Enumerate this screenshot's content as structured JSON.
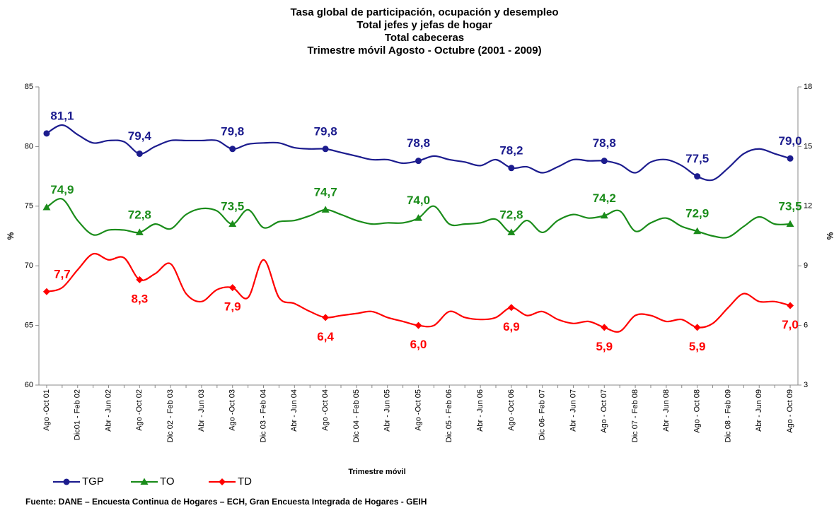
{
  "chart_data": {
    "type": "line",
    "title": [
      "Tasa global de participación, ocupación y desempleo",
      "Total jefes y jefas de hogar",
      "Total cabeceras",
      "Trimestre móvil Agosto - Octubre (2001 - 2009)"
    ],
    "xlabel": "Trimestre móvil",
    "ylabel": "%",
    "y2label": "%",
    "source": "Fuente: DANE – Encuesta Continua de Hogares – ECH, Gran Encuesta Integrada de Hogares - GEIH",
    "categories": [
      "Ago -Oct 01",
      null,
      "Dic01 - Feb 02",
      null,
      "Abr - Jun 02",
      null,
      "Ago -Oct 02",
      null,
      "Dic 02 - Feb 03",
      null,
      "Abr - Jun 03",
      null,
      "Ago -Oct 03",
      null,
      "Dic 03 - Feb 04",
      null,
      "Abr - Jun 04",
      null,
      "Ago -Oct 04",
      null,
      "Dic 04 - Feb 05",
      null,
      "Abr - Jun 05",
      null,
      "Ago -Oct 05",
      null,
      "Dic 05 - Feb 06",
      null,
      "Abr - Jun 06",
      null,
      "Ago -Oct 06",
      null,
      "Dic  06- Feb 07",
      null,
      "Abr - Jun 07",
      null,
      "Ago - Oct 07",
      null,
      "Dic 07 - Feb 08",
      null,
      "Abr - Jun 08",
      null,
      "Ago - Oct 08",
      null,
      "Dic 08 - Feb 09",
      null,
      "Abr - Jun 09",
      null,
      "Ago - Oct 09"
    ],
    "ylim": [
      60,
      85
    ],
    "yticks": [
      60,
      65,
      70,
      75,
      80,
      85
    ],
    "y2lim": [
      3,
      18
    ],
    "y2ticks": [
      3,
      6,
      9,
      12,
      15,
      18
    ],
    "series": [
      {
        "name": "TGP",
        "color": "#1c1c8e",
        "marker": "circle",
        "values": [
          81.1,
          81.8,
          81.0,
          80.3,
          80.5,
          80.4,
          79.4,
          80.0,
          80.5,
          80.5,
          80.5,
          80.5,
          79.8,
          80.2,
          80.3,
          80.3,
          79.9,
          79.8,
          79.8,
          79.5,
          79.2,
          78.9,
          78.9,
          78.6,
          78.8,
          79.2,
          78.9,
          78.7,
          78.4,
          78.9,
          78.2,
          78.3,
          77.8,
          78.3,
          78.9,
          78.8,
          78.8,
          78.5,
          77.8,
          78.7,
          78.9,
          78.4,
          77.5,
          77.2,
          78.2,
          79.4,
          79.8,
          79.4,
          79.0
        ],
        "value_labels": [
          "81,1",
          null,
          null,
          null,
          null,
          null,
          "79,4",
          null,
          null,
          null,
          null,
          null,
          "79,8",
          null,
          null,
          null,
          null,
          null,
          "79,8",
          null,
          null,
          null,
          null,
          null,
          "78,8",
          null,
          null,
          null,
          null,
          null,
          "78,2",
          null,
          null,
          null,
          null,
          null,
          "78,8",
          null,
          null,
          null,
          null,
          null,
          "77,5",
          null,
          null,
          null,
          null,
          null,
          "79,0"
        ]
      },
      {
        "name": "TO",
        "color": "#1a8c1a",
        "marker": "triangle",
        "values": [
          74.9,
          75.6,
          73.8,
          72.6,
          73.0,
          73.0,
          72.8,
          73.5,
          73.1,
          74.3,
          74.8,
          74.6,
          73.5,
          74.7,
          73.2,
          73.7,
          73.8,
          74.2,
          74.7,
          74.3,
          73.8,
          73.5,
          73.6,
          73.6,
          74.0,
          75.0,
          73.5,
          73.5,
          73.6,
          73.9,
          72.8,
          73.8,
          72.8,
          73.8,
          74.3,
          74.0,
          74.2,
          74.6,
          72.9,
          73.6,
          74.0,
          73.3,
          72.9,
          72.5,
          72.4,
          73.3,
          74.1,
          73.5,
          73.5
        ],
        "value_labels": [
          "74,9",
          null,
          null,
          null,
          null,
          null,
          "72,8",
          null,
          null,
          null,
          null,
          null,
          "73,5",
          null,
          null,
          null,
          null,
          null,
          "74,7",
          null,
          null,
          null,
          null,
          null,
          "74,0",
          null,
          null,
          null,
          null,
          null,
          "72,8",
          null,
          null,
          null,
          null,
          null,
          "74,2",
          null,
          null,
          null,
          null,
          null,
          "72,9",
          null,
          null,
          null,
          null,
          null,
          "73,5"
        ]
      },
      {
        "name": "TD",
        "color": "#ff0000",
        "marker": "diamond",
        "axis": "y2",
        "values": [
          7.7,
          7.9,
          8.8,
          9.6,
          9.3,
          9.4,
          8.3,
          8.6,
          9.1,
          7.6,
          7.2,
          7.8,
          7.9,
          7.4,
          9.3,
          7.4,
          7.1,
          6.7,
          6.4,
          6.5,
          6.6,
          6.7,
          6.4,
          6.2,
          6.0,
          6.0,
          6.7,
          6.4,
          6.3,
          6.4,
          6.9,
          6.5,
          6.7,
          6.3,
          6.1,
          6.2,
          5.9,
          5.7,
          6.5,
          6.5,
          6.2,
          6.3,
          5.9,
          6.1,
          6.9,
          7.6,
          7.2,
          7.2,
          7.0
        ],
        "value_labels": [
          "7,7",
          null,
          null,
          null,
          null,
          null,
          "8,3",
          null,
          null,
          null,
          null,
          null,
          "7,9",
          null,
          null,
          null,
          null,
          null,
          "6,4",
          null,
          null,
          null,
          null,
          null,
          "6,0",
          null,
          null,
          null,
          null,
          null,
          "6,9",
          null,
          null,
          null,
          null,
          null,
          "5,9",
          null,
          null,
          null,
          null,
          null,
          "5,9",
          null,
          null,
          null,
          null,
          null,
          "7,0"
        ]
      }
    ]
  }
}
